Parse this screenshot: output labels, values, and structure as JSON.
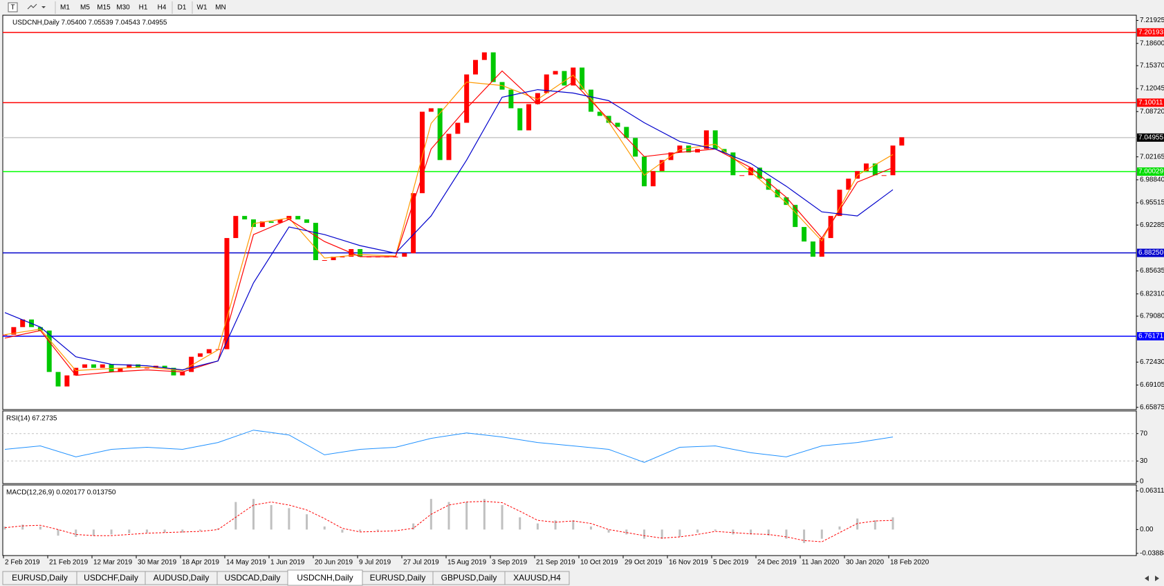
{
  "toolbar": {
    "timeframes": [
      "M1",
      "M5",
      "M15",
      "M30",
      "H1",
      "H4",
      "D1",
      "W1",
      "MN"
    ]
  },
  "chart_data": [
    {
      "type": "candlestick",
      "title": "USDCNH,Daily  7.05400 7.05539 7.04543 7.04955",
      "up_color": "#ff0000",
      "down_color": "#00c800",
      "closes": [
        6.764,
        6.775,
        6.786,
        6.775,
        6.77,
        6.71,
        6.689,
        6.705,
        6.716,
        6.721,
        6.716,
        6.721,
        6.71,
        6.716,
        6.721,
        6.716,
        6.716,
        6.719,
        6.716,
        6.705,
        6.71,
        6.732,
        6.737,
        6.743,
        6.743,
        6.904,
        6.936,
        6.931,
        6.92,
        6.928,
        6.926,
        6.931,
        6.936,
        6.931,
        6.926,
        6.872,
        6.872,
        6.877,
        6.877,
        6.888,
        6.877,
        6.877,
        6.877,
        6.877,
        6.877,
        6.882,
        6.969,
        7.087,
        7.092,
        7.017,
        7.055,
        7.071,
        7.141,
        7.162,
        7.173,
        7.13,
        7.119,
        7.092,
        7.06,
        7.098,
        7.114,
        7.141,
        7.146,
        7.125,
        7.151,
        7.119,
        7.087,
        7.081,
        7.071,
        7.065,
        7.049,
        7.022,
        6.979,
        7.001,
        7.017,
        7.028,
        7.038,
        7.028,
        7.033,
        7.06,
        7.033,
        7.028,
        6.995,
        6.995,
        7.006,
        6.99,
        6.974,
        6.963,
        6.952,
        6.92,
        6.899,
        6.877,
        6.904,
        6.936,
        6.974,
        6.99,
        7.001,
        7.012,
        6.995,
        6.995,
        7.038,
        7.05
      ],
      "moving_averages": [
        {
          "color": "#ff9900",
          "values": [
            6.764,
            6.772,
            6.712,
            6.715,
            6.717,
            6.712,
            6.742,
            6.925,
            6.933,
            6.875,
            6.88,
            6.878,
            7.07,
            7.13,
            7.125,
            7.105,
            7.14,
            7.072,
            6.995,
            7.032,
            7.04,
            7.0,
            6.955,
            6.9,
            6.995,
            7.025
          ]
        },
        {
          "color": "#ff0000",
          "values": [
            6.759,
            6.77,
            6.705,
            6.71,
            6.713,
            6.71,
            6.726,
            6.909,
            6.931,
            6.899,
            6.877,
            6.877,
            7.033,
            7.092,
            7.146,
            7.098,
            7.13,
            7.076,
            7.022,
            7.028,
            7.033,
            7.006,
            6.963,
            6.904,
            6.985,
            7.006
          ]
        },
        {
          "color": "#0000cc",
          "values": [
            6.796,
            6.775,
            6.732,
            6.721,
            6.719,
            6.713,
            6.726,
            6.839,
            6.92,
            6.909,
            6.893,
            6.882,
            6.936,
            7.017,
            7.108,
            7.119,
            7.114,
            7.103,
            7.071,
            7.044,
            7.033,
            7.012,
            6.979,
            6.942,
            6.936,
            6.974
          ]
        }
      ],
      "levels": [
        {
          "value": 7.20193,
          "color": "#ff0000",
          "box": "#ff0000"
        },
        {
          "value": 7.10011,
          "color": "#ff0000",
          "box": "#ff0000"
        },
        {
          "value": 7.04955,
          "color": "#c8c8c8",
          "box": "#000000"
        },
        {
          "value": 7.00029,
          "color": "#00ff00",
          "box": "#00dd00"
        },
        {
          "value": 6.8825,
          "label": "6.88250",
          "color": "#0000cc",
          "box": "#0000cc"
        },
        {
          "value": 6.76171,
          "color": "#0000ff",
          "box": "#0000ff"
        }
      ],
      "ylim": [
        6.6555,
        7.2268
      ],
      "yticks": [
        7.21925,
        {
          "value": 7.186,
          "label": "7.18600"
        },
        {
          "value": 7.1537,
          "label": "7.15370"
        },
        7.12045,
        {
          "value": 7.0872,
          "label": "7.08720"
        },
        7.02165,
        {
          "value": 6.9884,
          "label": "6.98840"
        },
        6.95515,
        6.92285,
        6.85635,
        {
          "value": 6.8231,
          "label": "6.82310"
        },
        {
          "value": 6.7908,
          "label": "6.79080"
        },
        {
          "value": 6.7243,
          "label": "6.72430"
        },
        6.69105,
        6.65875
      ]
    },
    {
      "type": "line",
      "title": "RSI(14) 67.2735",
      "color": "#1e90ff",
      "values": [
        47,
        52,
        36,
        47,
        50,
        47,
        57,
        75,
        68,
        39,
        47,
        50,
        63,
        71,
        65,
        57,
        52,
        47,
        28,
        50,
        52,
        42,
        36,
        52,
        57,
        65
      ],
      "levels": [
        70,
        30
      ],
      "ylim": [
        -3,
        103
      ],
      "yticks": [
        70,
        30,
        0
      ]
    },
    {
      "type": "macd",
      "title": "MACD(12,26,9) 0.020177 0.013750",
      "hist_color": "#c0c0c0",
      "signal_color": "#ff0000",
      "histogram": [
        0.005,
        0.008,
        0.005,
        -0.01,
        -0.012,
        -0.01,
        -0.008,
        -0.006,
        -0.005,
        -0.005,
        -0.005,
        -0.002,
        0.002,
        0.045,
        0.05,
        0.04,
        0.035,
        0.025,
        0.005,
        -0.005,
        -0.003,
        -0.002,
        0,
        0.01,
        0.05,
        0.045,
        0.045,
        0.05,
        0.04,
        0.02,
        0.01,
        0.015,
        0.015,
        0.005,
        -0.005,
        -0.008,
        -0.015,
        -0.015,
        -0.012,
        -0.005,
        -0.002,
        -0.008,
        -0.008,
        -0.01,
        -0.015,
        -0.022,
        -0.015,
        0.005,
        0.018,
        0.015,
        0.02
      ],
      "signal": [
        0.003,
        0.006,
        0.007,
        0,
        -0.008,
        -0.01,
        -0.01,
        -0.008,
        -0.006,
        -0.005,
        -0.004,
        -0.003,
        0,
        0.02,
        0.04,
        0.045,
        0.04,
        0.032,
        0.018,
        0.002,
        -0.004,
        -0.003,
        -0.002,
        0.002,
        0.025,
        0.04,
        0.045,
        0.046,
        0.044,
        0.03,
        0.015,
        0.012,
        0.014,
        0.01,
        0,
        -0.005,
        -0.01,
        -0.014,
        -0.012,
        -0.008,
        -0.003,
        -0.005,
        -0.007,
        -0.008,
        -0.012,
        -0.018,
        -0.02,
        -0.005,
        0.01,
        0.014,
        0.015
      ],
      "ylim": [
        -0.0425,
        0.0728
      ],
      "yticks": [
        0.063113,
        {
          "value": 0,
          "label": "0.00"
        },
        -0.038887
      ]
    }
  ],
  "x_axis": {
    "labels": [
      "2 Feb 2019",
      "21 Feb 2019",
      "12 Mar 2019",
      "30 Mar 2019",
      "18 Apr 2019",
      "14 May 2019",
      "1 Jun 2019",
      "20 Jun 2019",
      "9 Jul 2019",
      "27 Jul 2019",
      "15 Aug 2019",
      "3 Sep 2019",
      "21 Sep 2019",
      "10 Oct 2019",
      "29 Oct 2019",
      "16 Nov 2019",
      "5 Dec 2019",
      "24 Dec 2019",
      "11 Jan 2020",
      "30 Jan 2020",
      "18 Feb 2020"
    ]
  },
  "tabs": {
    "items": [
      "EURUSD,Daily",
      "USDCHF,Daily",
      "AUDUSD,Daily",
      "USDCAD,Daily",
      "USDCNH,Daily",
      "EURUSD,Daily",
      "GBPUSD,Daily",
      "XAUUSD,H4"
    ],
    "active": 4
  }
}
